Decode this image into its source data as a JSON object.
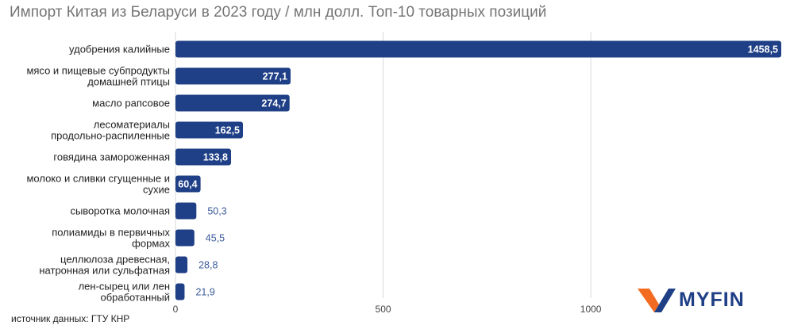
{
  "title": "Импорт Китая из Беларуси в 2023 году / млн долл. Топ-10 товарных позиций",
  "source": "источник данных: ГТУ КНР",
  "logo": {
    "text": "MYFIN",
    "icon": "myfin-v-logo-icon"
  },
  "colors": {
    "bar": "#1f3f86",
    "label_outside": "#3a5a9a",
    "grid": "#d9d9d9"
  },
  "chart_data": {
    "type": "bar",
    "orientation": "horizontal",
    "title": "Импорт Китая из Беларуси в 2023 году / млн долл. Топ-10 товарных позиций",
    "categories": [
      [
        "удобрения калийные"
      ],
      [
        "мясо и пищевые субпродукты",
        "домашней птицы"
      ],
      [
        "масло рапсовое"
      ],
      [
        "лесоматериалы",
        "продольно-распиленные"
      ],
      [
        "говядина замороженная"
      ],
      [
        "молоко и сливки сгущенные и",
        "сухие"
      ],
      [
        "сыворотка молочная"
      ],
      [
        "полиамиды в первичных",
        "формах"
      ],
      [
        "целлюлоза древесная,",
        "натронная или сульфатная"
      ],
      [
        "лен-сырец или лен",
        "обработанный"
      ]
    ],
    "values": [
      1458.5,
      277.1,
      274.7,
      162.5,
      133.8,
      60.4,
      50.3,
      45.5,
      28.8,
      21.9
    ],
    "value_labels": [
      "1458,5",
      "277,1",
      "274,7",
      "162,5",
      "133,8",
      "60,4",
      "50,3",
      "45,5",
      "28,8",
      "21,9"
    ],
    "xticks": [
      0,
      500,
      1000
    ],
    "xtick_labels": [
      "0",
      "500",
      "1000"
    ],
    "xlim": [
      0,
      1458.5
    ],
    "grid": true,
    "xlabel": "",
    "ylabel": ""
  }
}
